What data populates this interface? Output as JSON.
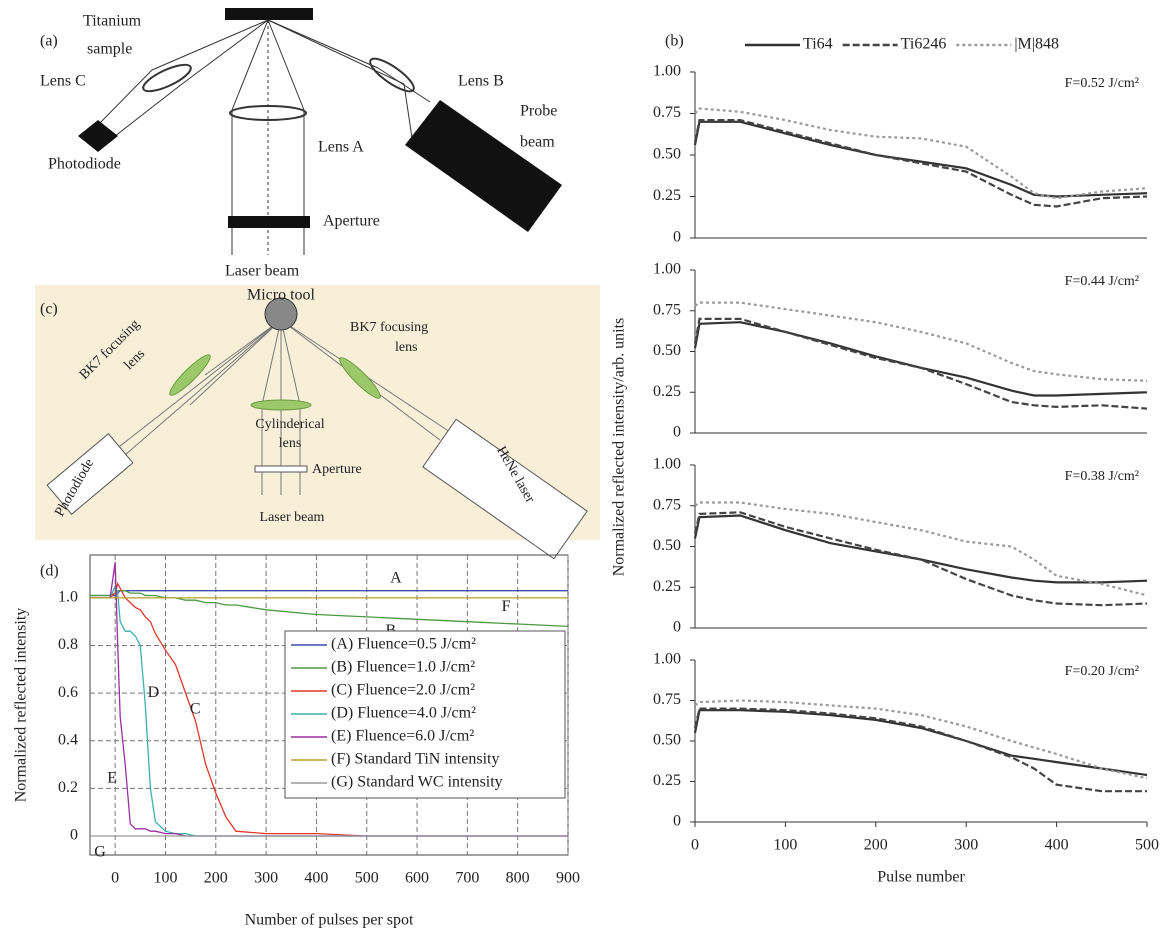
{
  "diagram_a": {
    "label": "(a)",
    "titanium": [
      "Titanium",
      "sample"
    ],
    "lens_c": "Lens C",
    "lens_b": "Lens B",
    "probe": [
      "Probe",
      "beam"
    ],
    "lens_a": "Lens A",
    "photodiode": "Photodiode",
    "aperture": "Aperture",
    "laser_beam": "Laser beam"
  },
  "diagram_c": {
    "label": "(c)",
    "micro_tool": "Micro tool",
    "left_lens": [
      "BK7 focusing",
      "lens"
    ],
    "right_lens": [
      "BK7 focusing",
      "lens"
    ],
    "cyl_lens": [
      "Cylinderical",
      "lens"
    ],
    "aperture": "Aperture",
    "laser_beam": "Laser beam",
    "photodiode": "Photodiode",
    "laser": "HeNe laser"
  },
  "chart_data": [
    {
      "type": "line",
      "label": "(d)",
      "xlabel": "Number of pulses per spot",
      "ylabel": "Normalized reflected intensity",
      "x": [
        -50,
        -10,
        0,
        5,
        10,
        20,
        30,
        40,
        50,
        60,
        70,
        80,
        100,
        120,
        140,
        160,
        180,
        200,
        220,
        240,
        300,
        400,
        500,
        600,
        700,
        800,
        900
      ],
      "xlim": [
        -50,
        900
      ],
      "xticks": [
        0,
        100,
        200,
        300,
        400,
        500,
        600,
        700,
        800,
        900
      ],
      "ylim": [
        -0.08,
        1.18
      ],
      "yticks": [
        0,
        0.2,
        0.4,
        0.6,
        0.8,
        {
          "value": 1,
          "label": "1.0"
        }
      ],
      "grid": true,
      "legend": "center right",
      "series": [
        {
          "name": "(A) Fluence=0.5 J/cm²",
          "color": "#3b4fb0",
          "values": [
            1.01,
            1.01,
            1.01,
            1.02,
            1.03,
            1.03,
            1.03,
            1.03,
            1.03,
            1.03,
            1.03,
            1.03,
            1.03,
            1.03,
            1.03,
            1.03,
            1.03,
            1.03,
            1.03,
            1.03,
            1.03,
            1.03,
            1.03,
            1.03,
            1.03,
            1.03,
            1.03
          ]
        },
        {
          "name": "(B) Fluence=1.0 J/cm²",
          "color": "#4a9a3f",
          "values": [
            1.01,
            1.01,
            1.02,
            1.03,
            1.03,
            1.03,
            1.02,
            1.02,
            1.02,
            1.01,
            1.01,
            1.01,
            1.0,
            1.0,
            0.99,
            0.99,
            0.98,
            0.98,
            0.97,
            0.97,
            0.95,
            0.93,
            0.92,
            0.91,
            0.9,
            0.89,
            0.88
          ]
        },
        {
          "name": "(C) Fluence=2.0 J/cm²",
          "color": "#e0392b",
          "values": [
            1.0,
            1.0,
            1.02,
            1.06,
            1.04,
            1.0,
            0.98,
            0.96,
            0.95,
            0.92,
            0.9,
            0.85,
            0.78,
            0.72,
            0.6,
            0.48,
            0.3,
            0.18,
            0.08,
            0.02,
            0.01,
            0.01,
            0,
            0,
            0,
            0,
            0
          ]
        },
        {
          "name": "(D) Fluence=4.0 J/cm²",
          "color": "#3bb0b0",
          "values": [
            1.0,
            1.0,
            1.05,
            1.02,
            0.9,
            0.86,
            0.86,
            0.84,
            0.8,
            0.55,
            0.2,
            0.06,
            0.02,
            0.01,
            0.01,
            0,
            0,
            0,
            0,
            0,
            0,
            0,
            0,
            0,
            0,
            0,
            0
          ]
        },
        {
          "name": "(E) Fluence=6.0 J/cm²",
          "color": "#9b2fa0",
          "values": [
            1.0,
            1.0,
            1.15,
            0.8,
            0.5,
            0.3,
            0.05,
            0.03,
            0.03,
            0.03,
            0.02,
            0.02,
            0.01,
            0.01,
            0,
            0,
            0,
            0,
            0,
            0,
            0,
            0,
            0,
            0,
            0,
            0,
            0
          ]
        },
        {
          "name": "(F) Standard TiN intensity",
          "color": "#b5a42a",
          "values": [
            1,
            1,
            1,
            1,
            1,
            1,
            1,
            1,
            1,
            1,
            1,
            1,
            1,
            1,
            1,
            1,
            1,
            1,
            1,
            1,
            1,
            1,
            1,
            1,
            1,
            1,
            1
          ]
        },
        {
          "name": "(G) Standard WC intensity",
          "color": "#9a9a9a",
          "values": [
            0,
            0,
            0,
            0,
            0,
            0,
            0,
            0,
            0,
            0,
            0,
            0,
            0,
            0,
            0,
            0,
            0,
            0,
            0,
            0,
            0,
            0,
            0,
            0,
            0,
            0,
            0
          ]
        }
      ],
      "annotations": [
        {
          "text": "A",
          "x": 558,
          "y": 1.08
        },
        {
          "text": "B",
          "x": 548,
          "y": 0.86
        },
        {
          "text": "C",
          "x": 159,
          "y": 0.53
        },
        {
          "text": "D",
          "x": 76,
          "y": 0.6
        },
        {
          "text": "E",
          "x": -6,
          "y": 0.24
        },
        {
          "text": "F",
          "x": 777,
          "y": 0.96
        },
        {
          "text": "G",
          "x": -30,
          "y": -0.07
        }
      ]
    },
    {
      "type": "line",
      "label": "(b)",
      "ylabel": "Normalized reflected intensity/arb. units",
      "legend": "top",
      "x": [
        0,
        5,
        50,
        100,
        150,
        200,
        250,
        300,
        350,
        375,
        400,
        450,
        500
      ],
      "xlim": [
        0,
        500
      ],
      "ylim": [
        0,
        1
      ],
      "yticks": [
        0,
        0.25,
        {
          "value": 0.5,
          "label": "0.50"
        },
        0.75,
        {
          "value": 1,
          "label": "1.00"
        }
      ],
      "grid": false,
      "annotations": [
        {
          "text": "F=0.52 J/cm²"
        }
      ],
      "series": [
        {
          "name": "Ti64",
          "color": "#333333",
          "linestyle": "solid",
          "values": [
            0.56,
            0.7,
            0.7,
            0.63,
            0.56,
            0.5,
            0.46,
            0.42,
            0.32,
            0.26,
            0.25,
            0.26,
            0.27
          ]
        },
        {
          "name": "Ti6246",
          "color": "#444444",
          "linestyle": "dashed",
          "values": [
            0.58,
            0.71,
            0.71,
            0.64,
            0.57,
            0.5,
            0.45,
            0.4,
            0.26,
            0.2,
            0.19,
            0.24,
            0.25
          ]
        },
        {
          "name": "|M|848",
          "color": "#9a9a9a",
          "linestyle": "dotted",
          "values": [
            0.75,
            0.78,
            0.76,
            0.71,
            0.65,
            0.61,
            0.6,
            0.55,
            0.37,
            0.27,
            0.24,
            0.28,
            0.3
          ]
        }
      ]
    },
    {
      "type": "line",
      "x": [
        0,
        5,
        50,
        100,
        150,
        200,
        250,
        300,
        350,
        375,
        400,
        450,
        500
      ],
      "xlim": [
        0,
        500
      ],
      "ylim": [
        0,
        1
      ],
      "yticks": [
        0,
        0.25,
        {
          "value": 0.5,
          "label": "0.50"
        },
        0.75,
        {
          "value": 1,
          "label": "1.00"
        }
      ],
      "grid": false,
      "annotations": [
        {
          "text": "F=0.44 J/cm²"
        }
      ],
      "series": [
        {
          "color": "#333333",
          "linestyle": "solid",
          "values": [
            0.52,
            0.67,
            0.68,
            0.62,
            0.55,
            0.47,
            0.4,
            0.34,
            0.26,
            0.23,
            0.23,
            0.24,
            0.25
          ]
        },
        {
          "color": "#444444",
          "linestyle": "dashed",
          "values": [
            0.55,
            0.7,
            0.7,
            0.62,
            0.54,
            0.46,
            0.4,
            0.3,
            0.19,
            0.17,
            0.16,
            0.17,
            0.15
          ]
        },
        {
          "color": "#9a9a9a",
          "linestyle": "dotted",
          "values": [
            0.78,
            0.8,
            0.8,
            0.76,
            0.72,
            0.68,
            0.62,
            0.55,
            0.43,
            0.38,
            0.36,
            0.33,
            0.32
          ]
        }
      ]
    },
    {
      "type": "line",
      "x": [
        0,
        5,
        50,
        100,
        150,
        200,
        250,
        300,
        350,
        375,
        400,
        450,
        500
      ],
      "xlim": [
        0,
        500
      ],
      "ylim": [
        0,
        1
      ],
      "yticks": [
        0,
        0.25,
        {
          "value": 0.5,
          "label": "0.50"
        },
        0.75,
        {
          "value": 1,
          "label": "1.00"
        }
      ],
      "grid": false,
      "annotations": [
        {
          "text": "F=0.38 J/cm²"
        }
      ],
      "series": [
        {
          "color": "#333333",
          "linestyle": "solid",
          "values": [
            0.55,
            0.68,
            0.69,
            0.6,
            0.52,
            0.47,
            0.42,
            0.36,
            0.31,
            0.29,
            0.28,
            0.28,
            0.29
          ]
        },
        {
          "color": "#444444",
          "linestyle": "dashed",
          "values": [
            0.58,
            0.7,
            0.71,
            0.62,
            0.55,
            0.48,
            0.42,
            0.3,
            0.2,
            0.17,
            0.15,
            0.14,
            0.15
          ]
        },
        {
          "color": "#9a9a9a",
          "linestyle": "dotted",
          "values": [
            0.75,
            0.77,
            0.77,
            0.73,
            0.7,
            0.65,
            0.6,
            0.53,
            0.5,
            0.42,
            0.32,
            0.27,
            0.2
          ]
        }
      ]
    },
    {
      "type": "line",
      "xlabel": "Pulse number",
      "x": [
        0,
        5,
        50,
        100,
        150,
        200,
        250,
        300,
        350,
        375,
        400,
        450,
        500
      ],
      "xlim": [
        0,
        500
      ],
      "xticks": [
        0,
        100,
        200,
        300,
        400,
        500
      ],
      "ylim": [
        0,
        1
      ],
      "yticks": [
        0,
        0.25,
        {
          "value": 0.5,
          "label": "0.50"
        },
        0.75,
        {
          "value": 1,
          "label": "1.00"
        }
      ],
      "grid": false,
      "annotations": [
        {
          "text": "F=0.20 J/cm²"
        }
      ],
      "series": [
        {
          "color": "#333333",
          "linestyle": "solid",
          "values": [
            0.55,
            0.69,
            0.69,
            0.68,
            0.66,
            0.63,
            0.58,
            0.5,
            0.41,
            0.39,
            0.37,
            0.33,
            0.29
          ]
        },
        {
          "color": "#444444",
          "linestyle": "dashed",
          "values": [
            0.58,
            0.7,
            0.7,
            0.69,
            0.67,
            0.64,
            0.59,
            0.5,
            0.4,
            0.33,
            0.23,
            0.19,
            0.19
          ]
        },
        {
          "color": "#9a9a9a",
          "linestyle": "dotted",
          "values": [
            0.72,
            0.74,
            0.75,
            0.74,
            0.72,
            0.7,
            0.66,
            0.59,
            0.5,
            0.46,
            0.42,
            0.33,
            0.27
          ]
        }
      ]
    }
  ]
}
